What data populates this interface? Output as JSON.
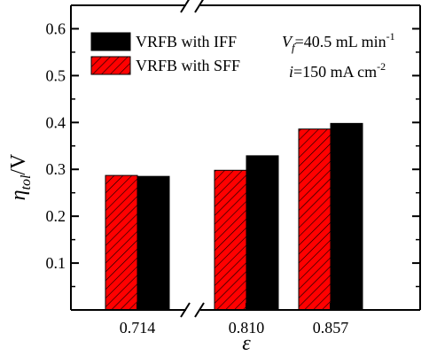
{
  "chart_data": {
    "type": "bar",
    "categories": [
      "0.714",
      "0.810",
      "0.857"
    ],
    "series": [
      {
        "name": "VRFB with SFF",
        "values": [
          0.287,
          0.298,
          0.386
        ],
        "color": "#ff0000",
        "pattern": "diagonal-hatch"
      },
      {
        "name": "VRFB with IFF",
        "values": [
          0.285,
          0.329,
          0.398
        ],
        "color": "#000000",
        "pattern": "solid"
      }
    ],
    "ylim": [
      0.0,
      0.65
    ],
    "yticks": [
      "0.1",
      "0.2",
      "0.3",
      "0.4",
      "0.5",
      "0.6"
    ],
    "ylabel": {
      "main": "η",
      "sub": "tol",
      "suffix": "/V"
    },
    "xlabel": "ε",
    "legend_order": [
      "VRFB with IFF",
      "VRFB with SFF"
    ],
    "legend_position": "top-left",
    "axis_break": true,
    "annotations": {
      "flow": {
        "var": "V",
        "sub": "f",
        "value": "=40.5 mL min",
        "sup": "-1"
      },
      "current": {
        "var": "i",
        "value": "=150 mA cm",
        "sup": "-2"
      }
    }
  }
}
